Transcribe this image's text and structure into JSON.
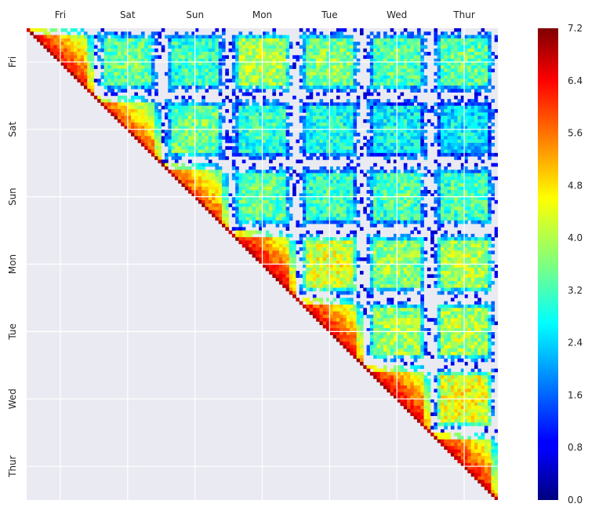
{
  "chart_data": {
    "type": "heatmap",
    "title": "",
    "xlabel": "",
    "ylabel": "",
    "x_ticks": [
      "Fri",
      "Sat",
      "Sun",
      "Mon",
      "Tue",
      "Wed",
      "Thur"
    ],
    "y_ticks": [
      "Fri",
      "Sat",
      "Sun",
      "Mon",
      "Tue",
      "Wed",
      "Thur"
    ],
    "grid": true,
    "upper_triangle_only": true,
    "bins_per_day": 20,
    "colorbar": {
      "colormap": "jet",
      "vmin": 0.0,
      "vmax": 7.2,
      "ticks": [
        "0.0",
        "0.8",
        "1.6",
        "2.4",
        "3.2",
        "4.0",
        "4.8",
        "5.6",
        "6.4",
        "7.2"
      ]
    },
    "block_mean_values": {
      "rows": [
        "Fri",
        "Sat",
        "Sun",
        "Mon",
        "Tue",
        "Wed",
        "Thur"
      ],
      "cols": [
        "Fri",
        "Sat",
        "Sun",
        "Mon",
        "Tue",
        "Wed",
        "Thur"
      ],
      "values": [
        [
          5.4,
          3.3,
          3.0,
          3.8,
          3.5,
          3.2,
          3.3
        ],
        [
          null,
          5.0,
          3.4,
          2.9,
          2.8,
          2.6,
          2.4
        ],
        [
          null,
          null,
          5.0,
          3.3,
          3.0,
          3.1,
          3.1
        ],
        [
          null,
          null,
          null,
          5.6,
          4.1,
          3.6,
          3.8
        ],
        [
          null,
          null,
          null,
          null,
          5.5,
          3.7,
          3.8
        ],
        [
          null,
          null,
          null,
          null,
          null,
          5.6,
          4.3
        ],
        [
          null,
          null,
          null,
          null,
          null,
          null,
          5.5
        ]
      ]
    },
    "colors": {
      "plot_background": "#EAEAF2",
      "grid": "#FFFFFF",
      "text": "#262626"
    }
  }
}
